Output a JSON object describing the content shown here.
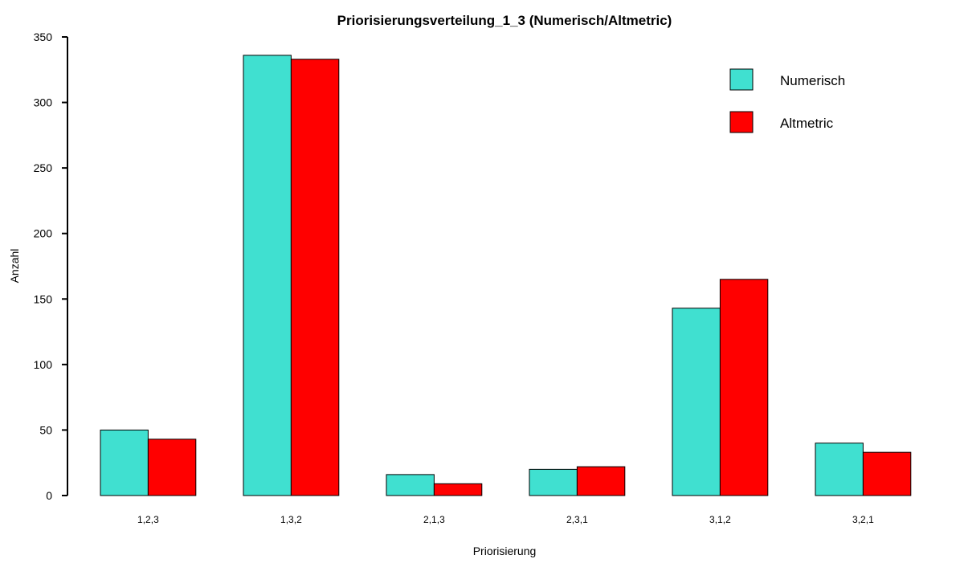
{
  "chart_data": {
    "type": "bar",
    "title": "Priorisierungsverteilung_1_3 (Numerisch/Altmetric)",
    "xlabel": "Priorisierung",
    "ylabel": "Anzahl",
    "categories": [
      "1,2,3",
      "1,3,2",
      "2,1,3",
      "2,3,1",
      "3,1,2",
      "3,2,1"
    ],
    "series": [
      {
        "name": "Numerisch",
        "color": "#40E0D0",
        "values": [
          50,
          336,
          16,
          20,
          143,
          40
        ]
      },
      {
        "name": "Altmetric",
        "color": "#FF0000",
        "values": [
          43,
          333,
          9,
          22,
          165,
          33
        ]
      }
    ],
    "ylim": [
      0,
      350
    ],
    "yticks": [
      0,
      50,
      100,
      150,
      200,
      250,
      300,
      350
    ],
    "grid": false,
    "legend_position": "top-right"
  }
}
